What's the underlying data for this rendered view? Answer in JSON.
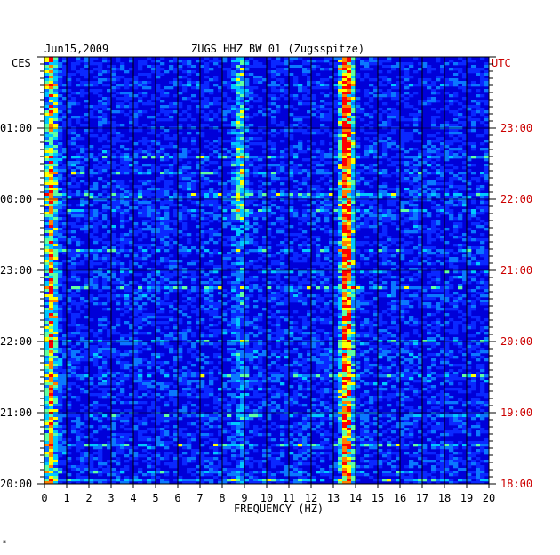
{
  "chart_data": {
    "type": "heatmap",
    "date": "Jun15,2009",
    "title": "ZUGS HHZ BW 01 (Zugsspitze)",
    "xlabel": "FREQUENCY (HZ)",
    "xlim": [
      0,
      20
    ],
    "x_ticks": [
      "0",
      "1",
      "2",
      "3",
      "4",
      "5",
      "6",
      "7",
      "8",
      "9",
      "10",
      "11",
      "12",
      "13",
      "14",
      "15",
      "16",
      "17",
      "18",
      "19",
      "20"
    ],
    "left_axis_label": "CES",
    "right_axis_label": "UTC",
    "left_time_ticks": [
      "01:00",
      "00:00",
      "23:00",
      "22:00",
      "21:00",
      "20:00"
    ],
    "right_time_ticks": [
      "23:00",
      "22:00",
      "21:00",
      "20:00",
      "19:00",
      "18:00"
    ],
    "color_scale": [
      "#00008c",
      "#0000d8",
      "#0a28ff",
      "#0a78ff",
      "#00c8ff",
      "#60ffa0",
      "#ffff00",
      "#ff8000",
      "#ff0000"
    ],
    "features": [
      {
        "frequency_hz": 13.6,
        "strength": 0.95
      },
      {
        "frequency_hz": 8.8,
        "strength": 0.5
      },
      {
        "frequency_hz": 0.3,
        "strength": 0.7
      }
    ],
    "corner_mark": "*"
  }
}
